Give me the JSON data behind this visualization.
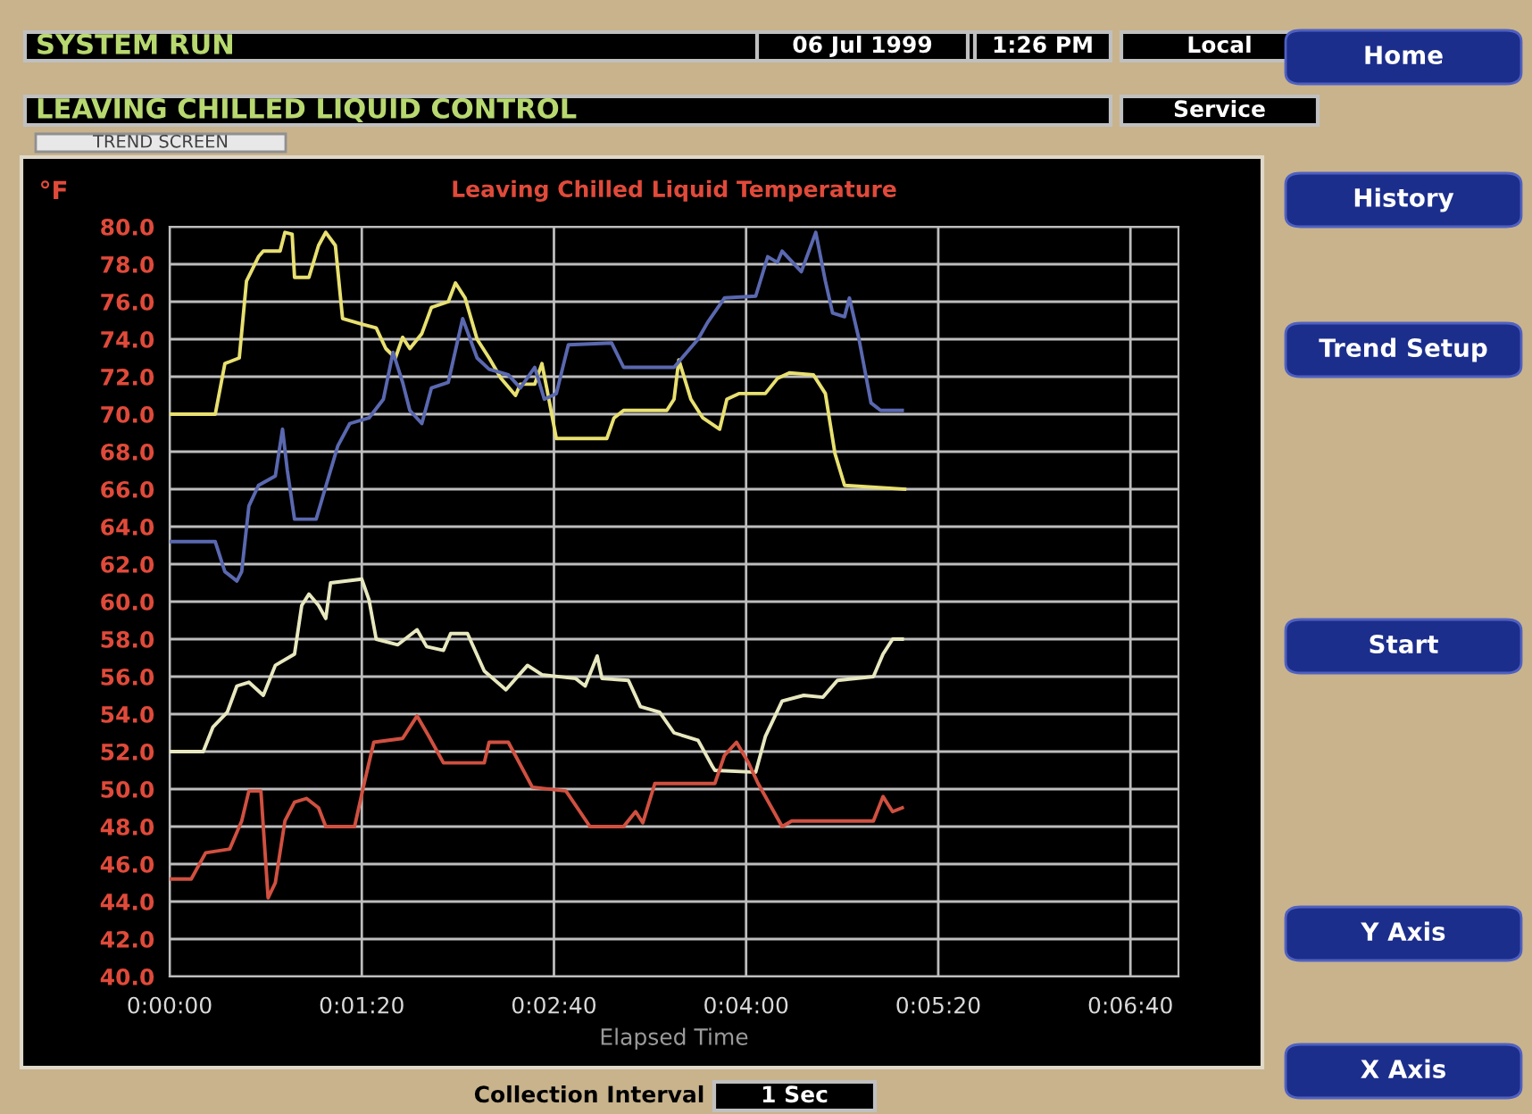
{
  "chart_data": {
    "type": "line",
    "title": "Leaving Chilled Liquid Temperature",
    "ylabel": "°F",
    "xlabel": "Elapsed Time",
    "annotations": [
      "SYSTEM RUN",
      "LEAVING CHILLED LIQUID CONTROL",
      "TREND SCREEN",
      "06 Jul 1999",
      "1:26 PM",
      "Local",
      "Service",
      "Home",
      "History",
      "Trend Setup",
      "Start",
      "Y Axis",
      "X Axis",
      "Collection Interval",
      "1 Sec"
    ],
    "xlim": [
      0,
      420
    ],
    "xticks": [
      {
        "value": 0,
        "label": "0:00:00"
      },
      {
        "value": 80,
        "label": "0:01:20"
      },
      {
        "value": 160,
        "label": "0:02:40"
      },
      {
        "value": 240,
        "label": "0:04:00"
      },
      {
        "value": 320,
        "label": "0:05:20"
      },
      {
        "value": 400,
        "label": "0:06:40"
      }
    ],
    "ylim": [
      40,
      80
    ],
    "yticks": [
      {
        "value": 40,
        "label": "40.0"
      },
      {
        "value": 42,
        "label": "42.0"
      },
      {
        "value": 44,
        "label": "44.0"
      },
      {
        "value": 46,
        "label": "46.0"
      },
      {
        "value": 48,
        "label": "48.0"
      },
      {
        "value": 50,
        "label": "50.0"
      },
      {
        "value": 52,
        "label": "52.0"
      },
      {
        "value": 54,
        "label": "54.0"
      },
      {
        "value": 56,
        "label": "56.0"
      },
      {
        "value": 58,
        "label": "58.0"
      },
      {
        "value": 60,
        "label": "60.0"
      },
      {
        "value": 62,
        "label": "62.0"
      },
      {
        "value": 64,
        "label": "64.0"
      },
      {
        "value": 66,
        "label": "66.0"
      },
      {
        "value": 68,
        "label": "68.0"
      },
      {
        "value": 70,
        "label": "70.0"
      },
      {
        "value": 72,
        "label": "72.0"
      },
      {
        "value": 74,
        "label": "74.0"
      },
      {
        "value": 76,
        "label": "76.0"
      },
      {
        "value": 78,
        "label": "78.0"
      },
      {
        "value": 80,
        "label": "80.0"
      }
    ],
    "grid": true,
    "legend": false,
    "marker": "none",
    "line_style": "solid",
    "series": [
      {
        "color": "#e8e070",
        "x": [
          0,
          19,
          23,
          29,
          32,
          37,
          39,
          46,
          48,
          51,
          52,
          58,
          62,
          65,
          69,
          72,
          80,
          86,
          90,
          94,
          97,
          100,
          105,
          109,
          116,
          119,
          123,
          128,
          133,
          138,
          144,
          146,
          152,
          155,
          157,
          161,
          182,
          185,
          189,
          207,
          210,
          212,
          217,
          222,
          229,
          232,
          237,
          248,
          253,
          258,
          268,
          273,
          277,
          281,
          306
        ],
        "values": [
          70,
          70,
          72.7,
          73,
          77.1,
          78.4,
          78.7,
          78.7,
          79.7,
          79.6,
          77.3,
          77.3,
          79,
          79.7,
          79,
          75.1,
          74.8,
          74.6,
          73.5,
          73,
          74.1,
          73.5,
          74.3,
          75.7,
          76,
          77,
          76.2,
          74,
          73,
          71.9,
          71,
          71.6,
          71.6,
          72.7,
          71.4,
          68.7,
          68.7,
          69.8,
          70.2,
          70.2,
          70.8,
          72.9,
          70.8,
          69.8,
          69.2,
          70.8,
          71.1,
          71.1,
          71.9,
          72.2,
          72.1,
          71.1,
          67.9,
          66.2,
          66
        ]
      },
      {
        "color": "#5a68b0",
        "x": [
          0,
          19,
          23,
          28,
          30,
          33,
          37,
          44,
          47,
          49,
          52,
          61,
          64,
          70,
          75,
          83,
          89,
          93,
          97,
          100,
          105,
          109,
          116,
          122,
          128,
          133,
          141,
          146,
          152,
          156,
          161,
          166,
          184,
          189,
          210,
          220,
          224,
          231,
          244,
          249,
          253,
          255,
          263,
          269,
          273,
          276,
          281,
          283,
          287,
          292,
          296,
          305
        ],
        "values": [
          63.2,
          63.2,
          61.6,
          61.1,
          61.6,
          65.1,
          66.2,
          66.7,
          69.2,
          67,
          64.4,
          64.4,
          65.7,
          68.3,
          69.5,
          69.8,
          70.8,
          73.3,
          71.7,
          70.2,
          69.5,
          71.4,
          71.7,
          75.1,
          73,
          72.4,
          72.1,
          71.4,
          72.5,
          70.8,
          71.1,
          73.7,
          73.8,
          72.5,
          72.5,
          74,
          74.9,
          76.2,
          76.3,
          78.4,
          78.1,
          78.7,
          77.6,
          79.7,
          77.1,
          75.4,
          75.2,
          76.2,
          74,
          70.6,
          70.2,
          70.2
        ]
      },
      {
        "color": "#e8e8c0",
        "x": [
          0,
          14,
          18,
          24,
          28,
          33,
          39,
          44,
          52,
          55,
          58,
          62,
          65,
          67,
          80,
          83,
          86,
          95,
          103,
          107,
          114,
          117,
          124,
          131,
          140,
          149,
          155,
          169,
          173,
          178,
          180,
          191,
          196,
          204,
          210,
          220,
          226,
          227,
          244,
          248,
          255,
          264,
          272,
          278,
          293,
          297,
          301,
          305
        ],
        "values": [
          52,
          52,
          53.3,
          54.1,
          55.5,
          55.7,
          55,
          56.6,
          57.2,
          59.8,
          60.4,
          59.8,
          59.1,
          61,
          61.2,
          60.1,
          58,
          57.7,
          58.5,
          57.6,
          57.4,
          58.3,
          58.3,
          56.3,
          55.3,
          56.6,
          56.1,
          55.9,
          55.5,
          57.1,
          55.9,
          55.8,
          54.4,
          54.1,
          53,
          52.6,
          51.2,
          51,
          50.9,
          52.8,
          54.7,
          55,
          54.9,
          55.8,
          56,
          57.2,
          58,
          58
        ]
      },
      {
        "color": "#d05040",
        "x": [
          0,
          9,
          15,
          25,
          30,
          33,
          38,
          41,
          44,
          48,
          52,
          57,
          62,
          65,
          77,
          81,
          85,
          97,
          103,
          108,
          114,
          131,
          133,
          141,
          151,
          165,
          175,
          189,
          194,
          197,
          202,
          207,
          227,
          231,
          236,
          241,
          245,
          255,
          259,
          293,
          297,
          301,
          305
        ],
        "values": [
          45.2,
          45.2,
          46.6,
          46.8,
          48.3,
          49.9,
          49.9,
          44.2,
          45,
          48.3,
          49.3,
          49.5,
          49,
          48,
          48,
          50.3,
          52.5,
          52.7,
          53.9,
          52.8,
          51.4,
          51.4,
          52.5,
          52.5,
          50.1,
          49.9,
          48,
          48,
          48.8,
          48.2,
          50.3,
          50.3,
          50.3,
          51.8,
          52.5,
          51.4,
          50.3,
          48,
          48.3,
          48.3,
          49.6,
          48.8,
          49
        ]
      }
    ]
  }
}
